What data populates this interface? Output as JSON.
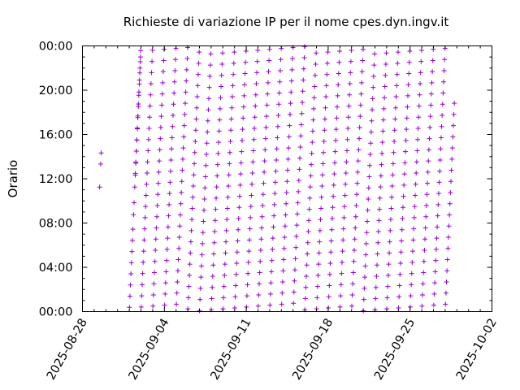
{
  "chart_data": {
    "type": "scatter",
    "title": "Richieste di variazione IP per il nome cpes.dyn.ingv.it",
    "ylabel": "Orario",
    "xlabel": "",
    "marker": "+",
    "marker_color": "#9400d3",
    "grid": false,
    "x_axis": {
      "kind": "date",
      "range": [
        "2025-08-28",
        "2025-10-02"
      ],
      "ticks": [
        "2025-08-28",
        "2025-09-04",
        "2025-09-11",
        "2025-09-18",
        "2025-09-25",
        "2025-10-02"
      ]
    },
    "y_axis": {
      "kind": "time-of-day",
      "range": [
        "00:00",
        "24:00"
      ],
      "ticks": [
        "00:00",
        "04:00",
        "08:00",
        "12:00",
        "16:00",
        "20:00",
        "00:00"
      ]
    },
    "series": [
      {
        "points_by_day": [
          {
            "date": "2025-08-29",
            "times": [
              "11:15",
              "13:20",
              "14:20"
            ]
          },
          {
            "date": "2025-09-01",
            "times": [
              "08:45",
              "09:50",
              "11:15",
              "12:20",
              "13:25",
              "14:30",
              "15:30",
              "16:35",
              "17:40",
              "18:45",
              "19:50",
              "20:55",
              "22:00",
              "23:00"
            ],
            "regular": {
              "first": "00:23",
              "last": "23:35",
              "step_minutes": 60.5,
              "count": 24,
              "missing_between": [
                "08:00",
                "12:00"
              ]
            }
          },
          {
            "date": "2025-09-02",
            "regular": {
              "first": "00:25",
              "last": "23:35",
              "step_minutes": 60.5,
              "count": 24
            }
          },
          {
            "date": "2025-09-03",
            "regular": {
              "first": "00:30",
              "last": "23:40",
              "step_minutes": 60.5,
              "count": 24
            }
          },
          {
            "date": "2025-09-04",
            "regular": {
              "first": "00:35",
              "last": "23:50",
              "step_minutes": 60.5,
              "count": 24
            }
          },
          {
            "date": "2025-09-05",
            "regular": {
              "first": "00:40",
              "last": "23:55",
              "step_minutes": 60.5,
              "count": 24
            }
          },
          {
            "date": "2025-09-06",
            "regular": {
              "first": "00:15",
              "last": "23:20",
              "step_minutes": 60.5,
              "count": 24
            }
          },
          {
            "date": "2025-09-07",
            "regular": {
              "first": "00:05",
              "last": "23:20",
              "step_minutes": 60.5,
              "count": 24
            }
          },
          {
            "date": "2025-09-08",
            "regular": {
              "first": "00:10",
              "last": "23:20",
              "step_minutes": 60.5,
              "count": 24
            }
          },
          {
            "date": "2025-09-09",
            "regular": {
              "first": "00:15",
              "last": "23:25",
              "step_minutes": 60.5,
              "count": 24
            }
          },
          {
            "date": "2025-09-10",
            "regular": {
              "first": "00:20",
              "last": "23:25",
              "step_minutes": 60.5,
              "count": 24
            }
          },
          {
            "date": "2025-09-11",
            "regular": {
              "first": "00:25",
              "last": "23:30",
              "step_minutes": 60.5,
              "count": 24
            }
          },
          {
            "date": "2025-09-12",
            "regular": {
              "first": "00:30",
              "last": "23:35",
              "step_minutes": 60.5,
              "count": 24
            }
          },
          {
            "date": "2025-09-13",
            "regular": {
              "first": "00:35",
              "last": "23:40",
              "step_minutes": 60.5,
              "count": 24
            }
          },
          {
            "date": "2025-09-14",
            "regular": {
              "first": "00:40",
              "last": "23:40",
              "step_minutes": 60.5,
              "count": 24
            }
          },
          {
            "date": "2025-09-15",
            "regular": {
              "first": "00:45",
              "last": "23:45",
              "step_minutes": 60.5,
              "count": 24
            }
          },
          {
            "date": "2025-09-16",
            "regular": {
              "first": "00:10",
              "last": "23:50",
              "step_minutes": 60.5,
              "count": 24
            }
          },
          {
            "date": "2025-09-17",
            "regular": {
              "first": "00:15",
              "last": "23:55",
              "step_minutes": 60.5,
              "count": 24
            }
          },
          {
            "date": "2025-09-18",
            "regular": {
              "first": "00:20",
              "last": "23:59",
              "step_minutes": 60.5,
              "count": 24
            }
          },
          {
            "date": "2025-09-19",
            "regular": {
              "first": "00:25",
              "last": "23:35",
              "step_minutes": 60.5,
              "count": 24
            }
          },
          {
            "date": "2025-09-20",
            "regular": {
              "first": "00:30",
              "last": "23:35",
              "step_minutes": 60.5,
              "count": 24
            }
          },
          {
            "date": "2025-09-21",
            "regular": {
              "first": "00:05",
              "last": "23:30",
              "step_minutes": 60.5,
              "count": 24
            }
          },
          {
            "date": "2025-09-22",
            "regular": {
              "first": "00:10",
              "last": "23:25",
              "step_minutes": 60.5,
              "count": 24
            }
          },
          {
            "date": "2025-09-23",
            "regular": {
              "first": "00:15",
              "last": "23:25",
              "step_minutes": 60.5,
              "count": 24
            }
          },
          {
            "date": "2025-09-24",
            "regular": {
              "first": "00:20",
              "last": "23:20",
              "step_minutes": 60.5,
              "count": 24
            }
          },
          {
            "date": "2025-09-25",
            "regular": {
              "first": "00:25",
              "last": "23:20",
              "step_minutes": 60.5,
              "count": 24
            }
          },
          {
            "date": "2025-09-26",
            "regular": {
              "first": "00:30",
              "last": "23:15",
              "step_minutes": 60.5,
              "count": 24
            }
          },
          {
            "date": "2025-09-27",
            "regular": {
              "first": "00:35",
              "last": "23:10",
              "step_minutes": 60.5,
              "count": 24
            }
          },
          {
            "date": "2025-09-28",
            "regular": {
              "first": "00:40",
              "last": "18:50",
              "step_minutes": 60.5,
              "count": 19
            }
          }
        ]
      }
    ]
  }
}
